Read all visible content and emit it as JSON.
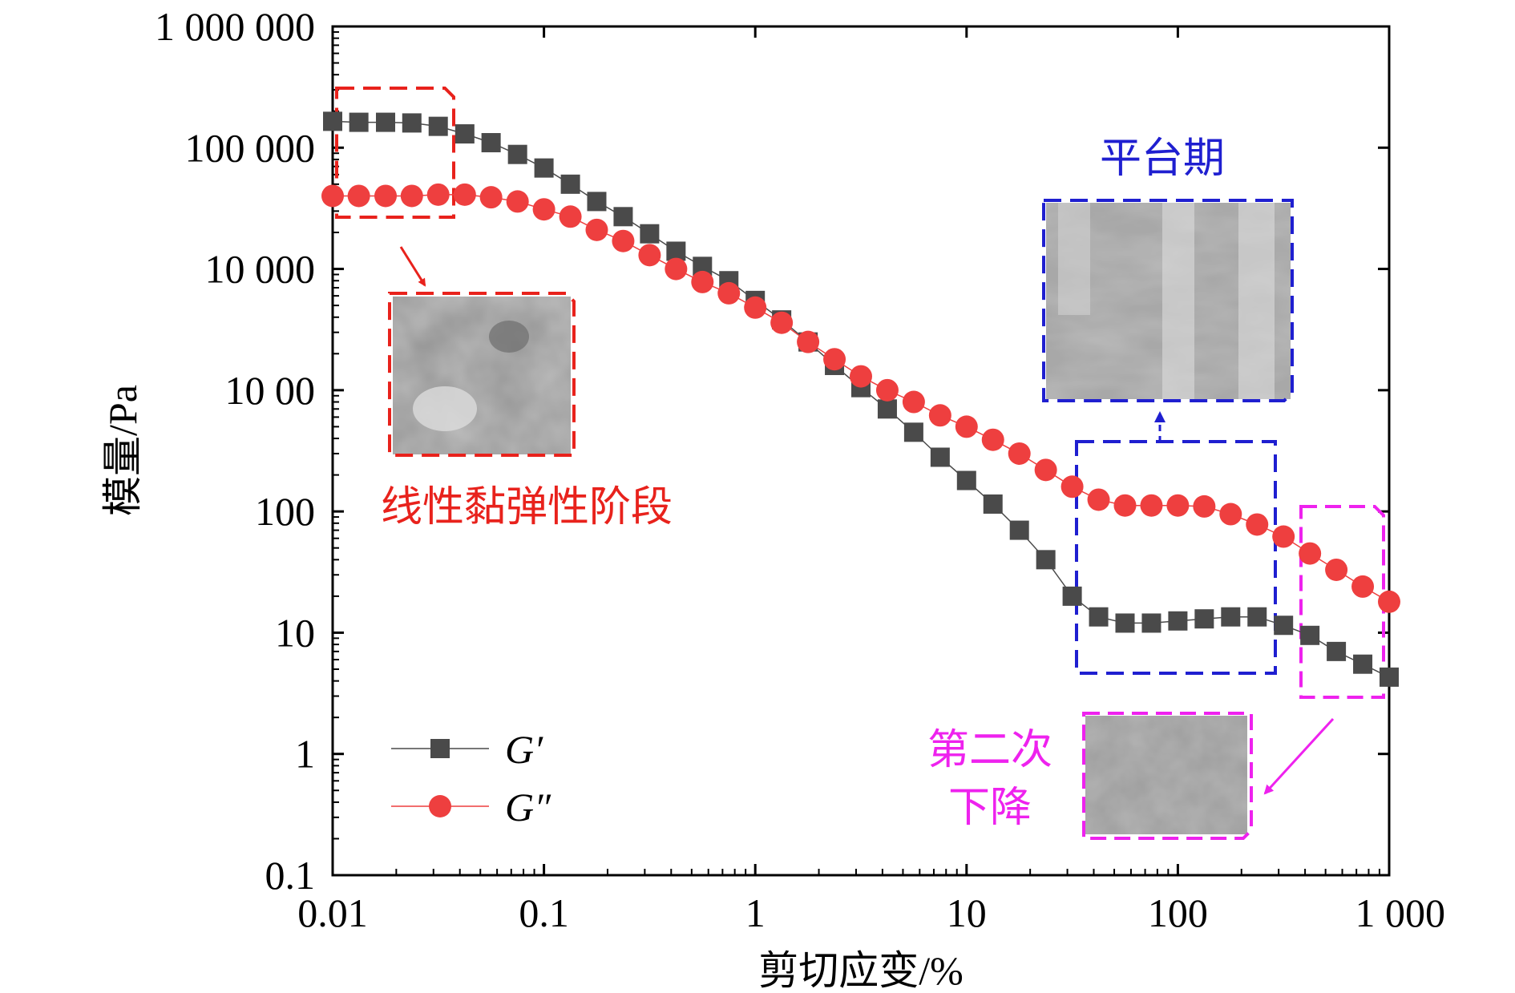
{
  "chart_data": {
    "type": "scatter",
    "xlabel": "剪切应变/%",
    "ylabel": "模量/Pa",
    "xscale": "log",
    "yscale": "log",
    "xlim": [
      0.01,
      1000
    ],
    "ylim": [
      0.1,
      1000000
    ],
    "x_ticks": [
      {
        "value": 0.01,
        "label": "0.01"
      },
      {
        "value": 0.1,
        "label": "0.1"
      },
      {
        "value": 1,
        "label": "1"
      },
      {
        "value": 10,
        "label": "10"
      },
      {
        "value": 100,
        "label": "100"
      },
      {
        "value": 1000,
        "label": "1 000"
      }
    ],
    "y_ticks": [
      {
        "value": 0.1,
        "label": "0.1"
      },
      {
        "value": 1,
        "label": "1"
      },
      {
        "value": 10,
        "label": "10"
      },
      {
        "value": 100,
        "label": "100"
      },
      {
        "value": 1000,
        "label": "10 00"
      },
      {
        "value": 10000,
        "label": "10 000"
      },
      {
        "value": 100000,
        "label": "100 000"
      },
      {
        "value": 1000000,
        "label": "1 000 000"
      }
    ],
    "grid": false,
    "legend_position": "bottom-left",
    "series": [
      {
        "name": "G′",
        "marker": "square",
        "color": "#4a4a4a",
        "x": [
          0.01,
          0.0133,
          0.0178,
          0.0237,
          0.0316,
          0.0422,
          0.0562,
          0.075,
          0.1,
          0.1334,
          0.1778,
          0.2371,
          0.3162,
          0.4217,
          0.5623,
          0.7499,
          1.0,
          1.3335,
          1.7783,
          2.3714,
          3.1623,
          4.217,
          5.6234,
          7.4989,
          10.0,
          13.335,
          17.783,
          23.714,
          31.623,
          42.17,
          56.234,
          74.989,
          100.0,
          133.35,
          177.83,
          237.14,
          316.23,
          421.7,
          562.34,
          749.89,
          1000.0
        ],
        "y": [
          165000,
          162000,
          162000,
          160000,
          150000,
          130000,
          110000,
          88000,
          68000,
          50000,
          36000,
          27000,
          19500,
          14000,
          10500,
          8000,
          5500,
          3800,
          2500,
          1600,
          1050,
          700,
          450,
          280,
          180,
          115,
          70,
          40,
          20,
          13.5,
          12,
          12,
          12.5,
          13,
          13.5,
          13.5,
          11.5,
          9.5,
          7,
          5.5,
          4.3
        ]
      },
      {
        "name": "G″",
        "marker": "circle",
        "color": "#ee3f3f",
        "x": [
          0.01,
          0.0133,
          0.0178,
          0.0237,
          0.0316,
          0.0422,
          0.0562,
          0.075,
          0.1,
          0.1334,
          0.1778,
          0.2371,
          0.3162,
          0.4217,
          0.5623,
          0.7499,
          1.0,
          1.3335,
          1.7783,
          2.3714,
          3.1623,
          4.217,
          5.6234,
          7.4989,
          10.0,
          13.335,
          17.783,
          23.714,
          31.623,
          42.17,
          56.234,
          74.989,
          100.0,
          133.35,
          177.83,
          237.14,
          316.23,
          421.7,
          562.34,
          749.89,
          1000.0
        ],
        "y": [
          40000,
          40000,
          40000,
          40000,
          41000,
          41000,
          39000,
          36000,
          31000,
          27000,
          21000,
          17000,
          13000,
          10000,
          7800,
          6300,
          4800,
          3600,
          2500,
          1800,
          1300,
          1000,
          800,
          620,
          500,
          390,
          300,
          220,
          160,
          125,
          112,
          112,
          112,
          110,
          95,
          78,
          62,
          45,
          33,
          24,
          18
        ]
      }
    ],
    "annotations": [
      {
        "text": "线性黏弹性阶段",
        "color": "#e8221c"
      },
      {
        "text": "平台期",
        "color": "#1f1fd0"
      },
      {
        "text_line1": "第二次",
        "text_line2": "下降",
        "color": "#ee22ee"
      }
    ]
  }
}
